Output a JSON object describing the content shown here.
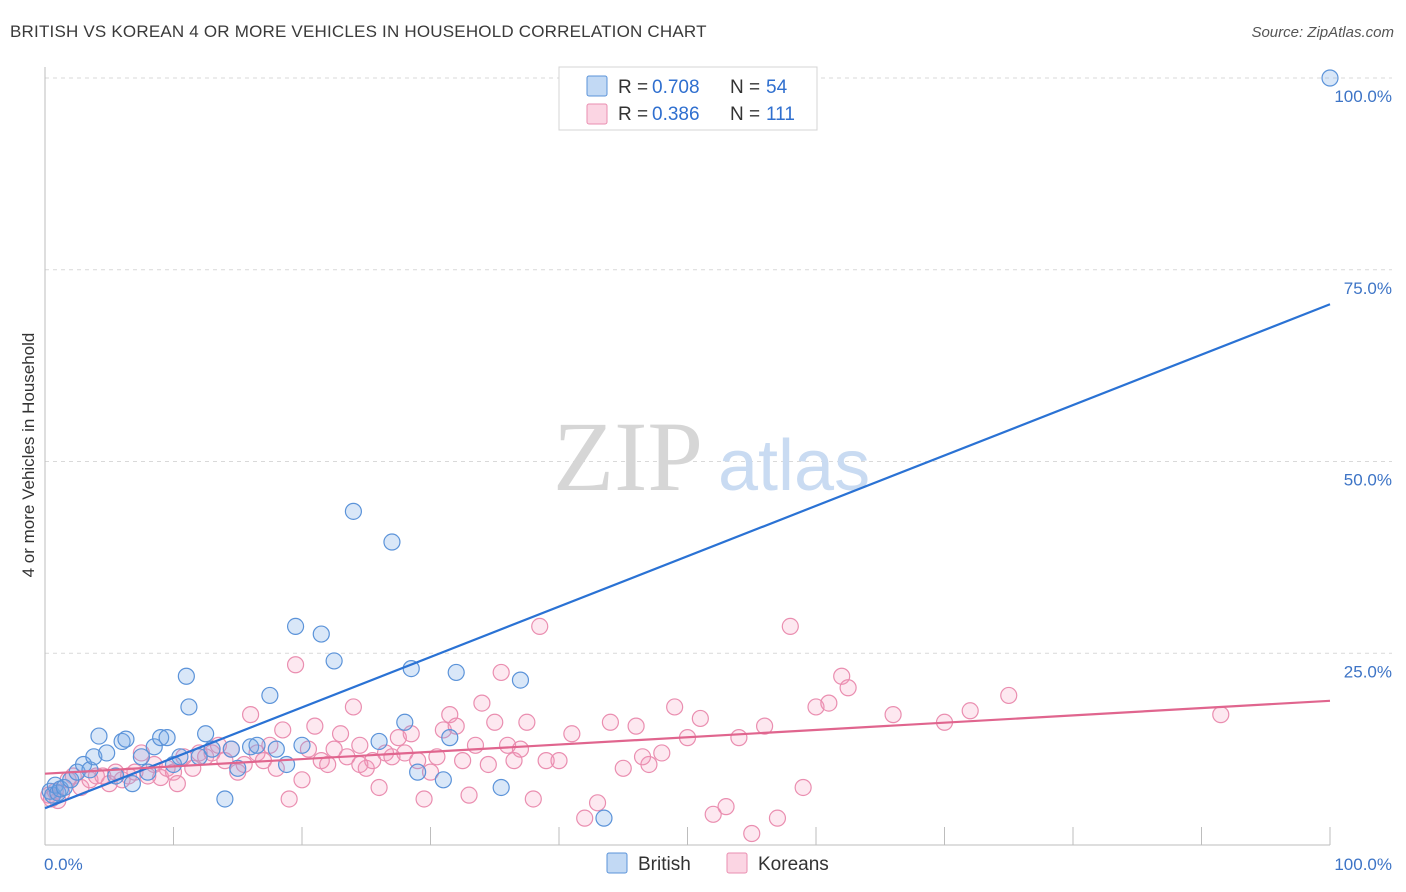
{
  "header": {
    "title": "BRITISH VS KOREAN 4 OR MORE VEHICLES IN HOUSEHOLD CORRELATION CHART",
    "source": "Source: ZipAtlas.com"
  },
  "watermark": {
    "zip": "ZIP",
    "atlas": "atlas"
  },
  "legend": {
    "rows": [
      {
        "r_label": "R = ",
        "r_value": "0.708",
        "n_label": "N = ",
        "n_value": "54"
      },
      {
        "r_label": "R = ",
        "r_value": "0.386",
        "n_label": "N = ",
        "n_value": "111"
      }
    ]
  },
  "colors": {
    "british_fill": "rgba(120,170,230,0.28)",
    "british_stroke": "#5b93d9",
    "british_line": "#2a72d4",
    "korean_fill": "rgba(245,150,185,0.22)",
    "korean_stroke": "#ea8eb0",
    "korean_line": "#e0658e",
    "tick_color": "#3d74c6",
    "grid": "#d9d9d9"
  },
  "chart_data": {
    "type": "scatter",
    "title": "BRITISH VS KOREAN 4 OR MORE VEHICLES IN HOUSEHOLD CORRELATION CHART",
    "xlabel": "",
    "ylabel": "4 or more Vehicles in Household",
    "xlim": [
      0,
      100
    ],
    "ylim": [
      0,
      100
    ],
    "x_tick_labels": [
      "0.0%",
      "100.0%"
    ],
    "y_tick_values": [
      25,
      50,
      75,
      100
    ],
    "y_tick_labels": [
      "25.0%",
      "50.0%",
      "75.0%",
      "100.0%"
    ],
    "grid": true,
    "legend_position": "bottom-center",
    "series": [
      {
        "name": "British",
        "trend": {
          "x": [
            0,
            100
          ],
          "y": [
            4.8,
            70.5
          ]
        },
        "points": [
          [
            0.4,
            7.0
          ],
          [
            0.6,
            6.5
          ],
          [
            0.8,
            7.8
          ],
          [
            1.0,
            6.8
          ],
          [
            1.2,
            7.3
          ],
          [
            1.5,
            7.5
          ],
          [
            2.0,
            8.5
          ],
          [
            2.5,
            9.5
          ],
          [
            3.0,
            10.5
          ],
          [
            3.5,
            9.8
          ],
          [
            3.8,
            11.5
          ],
          [
            4.2,
            14.2
          ],
          [
            4.8,
            12.0
          ],
          [
            5.5,
            9.0
          ],
          [
            6.0,
            13.5
          ],
          [
            6.3,
            13.8
          ],
          [
            6.8,
            8.0
          ],
          [
            7.5,
            11.5
          ],
          [
            8.0,
            9.5
          ],
          [
            8.5,
            12.8
          ],
          [
            9.0,
            14.0
          ],
          [
            9.5,
            14.0
          ],
          [
            10.0,
            10.5
          ],
          [
            10.5,
            11.5
          ],
          [
            11.0,
            22.0
          ],
          [
            11.2,
            18.0
          ],
          [
            12.0,
            11.5
          ],
          [
            12.5,
            14.5
          ],
          [
            13.0,
            12.5
          ],
          [
            14.0,
            6.0
          ],
          [
            14.5,
            12.5
          ],
          [
            15.0,
            10.0
          ],
          [
            16.0,
            12.8
          ],
          [
            16.5,
            13.0
          ],
          [
            17.5,
            19.5
          ],
          [
            18.0,
            12.5
          ],
          [
            18.8,
            10.5
          ],
          [
            19.5,
            28.5
          ],
          [
            20.0,
            13.0
          ],
          [
            21.5,
            27.5
          ],
          [
            22.5,
            24.0
          ],
          [
            24.0,
            43.5
          ],
          [
            26.0,
            13.5
          ],
          [
            27.0,
            39.5
          ],
          [
            28.0,
            16.0
          ],
          [
            28.5,
            23.0
          ],
          [
            29.0,
            9.5
          ],
          [
            31.0,
            8.5
          ],
          [
            31.5,
            14.0
          ],
          [
            32.0,
            22.5
          ],
          [
            35.5,
            7.5
          ],
          [
            37.0,
            21.5
          ],
          [
            43.5,
            3.5
          ],
          [
            100.0,
            100.0
          ]
        ]
      },
      {
        "name": "Koreans",
        "trend": {
          "x": [
            0,
            100
          ],
          "y": [
            9.3,
            18.8
          ]
        },
        "points": [
          [
            0.3,
            6.5
          ],
          [
            0.5,
            6.0
          ],
          [
            0.8,
            7.0
          ],
          [
            1.0,
            5.8
          ],
          [
            1.3,
            6.8
          ],
          [
            1.8,
            8.5
          ],
          [
            2.2,
            9.0
          ],
          [
            2.8,
            7.5
          ],
          [
            3.5,
            8.5
          ],
          [
            4.0,
            9.0
          ],
          [
            4.5,
            9.0
          ],
          [
            5.0,
            8.0
          ],
          [
            5.5,
            9.5
          ],
          [
            6.0,
            8.5
          ],
          [
            6.5,
            9.0
          ],
          [
            7.0,
            9.5
          ],
          [
            7.5,
            12.0
          ],
          [
            8.0,
            9.0
          ],
          [
            8.5,
            10.5
          ],
          [
            9.0,
            8.8
          ],
          [
            9.5,
            10.0
          ],
          [
            10.0,
            9.5
          ],
          [
            10.3,
            8.0
          ],
          [
            10.8,
            11.5
          ],
          [
            11.5,
            10.0
          ],
          [
            12.0,
            12.0
          ],
          [
            12.5,
            11.5
          ],
          [
            13.0,
            12.0
          ],
          [
            13.5,
            13.0
          ],
          [
            14.0,
            11.0
          ],
          [
            14.5,
            12.5
          ],
          [
            15.0,
            9.5
          ],
          [
            15.5,
            10.5
          ],
          [
            16.0,
            17.0
          ],
          [
            16.5,
            12.0
          ],
          [
            17.0,
            11.0
          ],
          [
            17.5,
            13.0
          ],
          [
            18.0,
            10.0
          ],
          [
            18.5,
            15.0
          ],
          [
            19.0,
            6.0
          ],
          [
            19.5,
            23.5
          ],
          [
            20.0,
            8.5
          ],
          [
            20.5,
            12.5
          ],
          [
            21.0,
            15.5
          ],
          [
            21.5,
            11.0
          ],
          [
            22.0,
            10.5
          ],
          [
            22.5,
            12.5
          ],
          [
            23.0,
            14.5
          ],
          [
            23.5,
            11.5
          ],
          [
            24.0,
            18.0
          ],
          [
            24.5,
            13.0
          ],
          [
            25.0,
            10.0
          ],
          [
            25.5,
            11.0
          ],
          [
            26.0,
            7.5
          ],
          [
            26.5,
            12.0
          ],
          [
            27.0,
            11.5
          ],
          [
            27.5,
            14.0
          ],
          [
            28.0,
            12.0
          ],
          [
            28.5,
            14.5
          ],
          [
            29.0,
            11.0
          ],
          [
            29.5,
            6.0
          ],
          [
            30.0,
            9.5
          ],
          [
            30.5,
            11.5
          ],
          [
            31.0,
            15.0
          ],
          [
            31.5,
            17.0
          ],
          [
            32.0,
            15.5
          ],
          [
            32.5,
            11.0
          ],
          [
            33.0,
            6.5
          ],
          [
            33.5,
            13.0
          ],
          [
            34.0,
            18.5
          ],
          [
            35.0,
            16.0
          ],
          [
            35.5,
            22.5
          ],
          [
            36.0,
            13.0
          ],
          [
            36.5,
            11.0
          ],
          [
            37.0,
            12.5
          ],
          [
            37.5,
            16.0
          ],
          [
            38.0,
            6.0
          ],
          [
            38.5,
            28.5
          ],
          [
            39.0,
            11.0
          ],
          [
            40.0,
            11.0
          ],
          [
            41.0,
            14.5
          ],
          [
            42.0,
            3.5
          ],
          [
            43.0,
            5.5
          ],
          [
            44.0,
            16.0
          ],
          [
            45.0,
            10.0
          ],
          [
            46.0,
            15.5
          ],
          [
            47.0,
            10.5
          ],
          [
            48.0,
            12.0
          ],
          [
            49.0,
            18.0
          ],
          [
            50.0,
            14.0
          ],
          [
            51.0,
            16.5
          ],
          [
            52.0,
            4.0
          ],
          [
            53.0,
            5.0
          ],
          [
            54.0,
            14.0
          ],
          [
            55.0,
            1.5
          ],
          [
            56.0,
            15.5
          ],
          [
            57.0,
            3.5
          ],
          [
            58.0,
            28.5
          ],
          [
            59.0,
            7.5
          ],
          [
            60.0,
            18.0
          ],
          [
            61.0,
            18.5
          ],
          [
            62.0,
            22.0
          ],
          [
            62.5,
            20.5
          ],
          [
            66.0,
            17.0
          ],
          [
            70.0,
            16.0
          ],
          [
            72.0,
            17.5
          ],
          [
            75.0,
            19.5
          ],
          [
            91.5,
            17.0
          ],
          [
            24.5,
            10.5
          ],
          [
            34.5,
            10.5
          ],
          [
            46.5,
            11.5
          ]
        ]
      }
    ]
  }
}
